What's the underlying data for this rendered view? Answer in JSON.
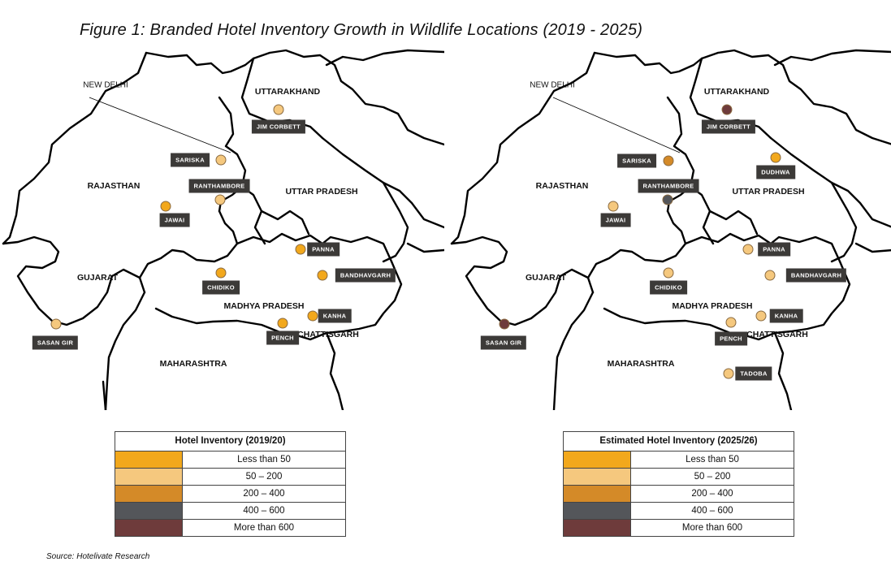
{
  "title": "Figure 1: Branded Hotel Inventory Growth in Wildlife Locations  (2019 - 2025)",
  "source": "Source: Hotelivate Research",
  "colors": {
    "lt50": "#f2a81c",
    "c50_200": "#f5c87e",
    "c200_400": "#d48a28",
    "c400_600": "#54565a",
    "gt600": "#6e3b3b"
  },
  "maps": {
    "left": {
      "regions": [
        "UTTARAKHAND",
        "RAJASTHAN",
        "UTTAR PRADESH",
        "GUJARAT",
        "MADHYA PRADESH",
        "CHATTISGARH",
        "MAHARASHTRA"
      ],
      "capital": "NEW DELHI",
      "destinations": [
        {
          "name": "JIM CORBETT",
          "category": "c50_200"
        },
        {
          "name": "SARISKA",
          "category": "c50_200"
        },
        {
          "name": "RANTHAMBORE",
          "category": "c50_200"
        },
        {
          "name": "JAWAI",
          "category": "lt50"
        },
        {
          "name": "PANNA",
          "category": "lt50"
        },
        {
          "name": "CHIDIKO",
          "category": "lt50"
        },
        {
          "name": "BANDHAVGARH",
          "category": "lt50"
        },
        {
          "name": "KANHA",
          "category": "lt50"
        },
        {
          "name": "PENCH",
          "category": "lt50"
        },
        {
          "name": "SASAN GIR",
          "category": "c50_200"
        }
      ]
    },
    "right": {
      "regions": [
        "UTTARAKHAND",
        "RAJASTHAN",
        "UTTAR PRADESH",
        "GUJARAT",
        "MADHYA PRADESH",
        "CHATTISGARH",
        "MAHARASHTRA"
      ],
      "capital": "NEW DELHI",
      "destinations": [
        {
          "name": "JIM CORBETT",
          "category": "gt600"
        },
        {
          "name": "SARISKA",
          "category": "c200_400"
        },
        {
          "name": "DUDHWA",
          "category": "lt50"
        },
        {
          "name": "RANTHAMBORE",
          "category": "c400_600"
        },
        {
          "name": "JAWAI",
          "category": "c50_200"
        },
        {
          "name": "PANNA",
          "category": "c50_200"
        },
        {
          "name": "CHIDIKO",
          "category": "c50_200"
        },
        {
          "name": "BANDHAVGARH",
          "category": "c50_200"
        },
        {
          "name": "KANHA",
          "category": "c50_200"
        },
        {
          "name": "PENCH",
          "category": "c50_200"
        },
        {
          "name": "SASAN GIR",
          "category": "gt600"
        },
        {
          "name": "TADOBA",
          "category": "c50_200"
        }
      ]
    }
  },
  "legends": {
    "left": {
      "title": "Hotel Inventory (2019/20)",
      "rows": [
        {
          "label": "Less than 50",
          "category": "lt50"
        },
        {
          "label": "50 – 200",
          "category": "c50_200"
        },
        {
          "label": "200 – 400",
          "category": "c200_400"
        },
        {
          "label": "400 – 600",
          "category": "c400_600"
        },
        {
          "label": "More than 600",
          "category": "gt600"
        }
      ]
    },
    "right": {
      "title": "Estimated Hotel Inventory (2025/26)",
      "rows": [
        {
          "label": "Less than 50",
          "category": "lt50"
        },
        {
          "label": "50 – 200",
          "category": "c50_200"
        },
        {
          "label": "200 – 400",
          "category": "c200_400"
        },
        {
          "label": "400 – 600",
          "category": "c400_600"
        },
        {
          "label": "More than 600",
          "category": "gt600"
        }
      ]
    }
  }
}
